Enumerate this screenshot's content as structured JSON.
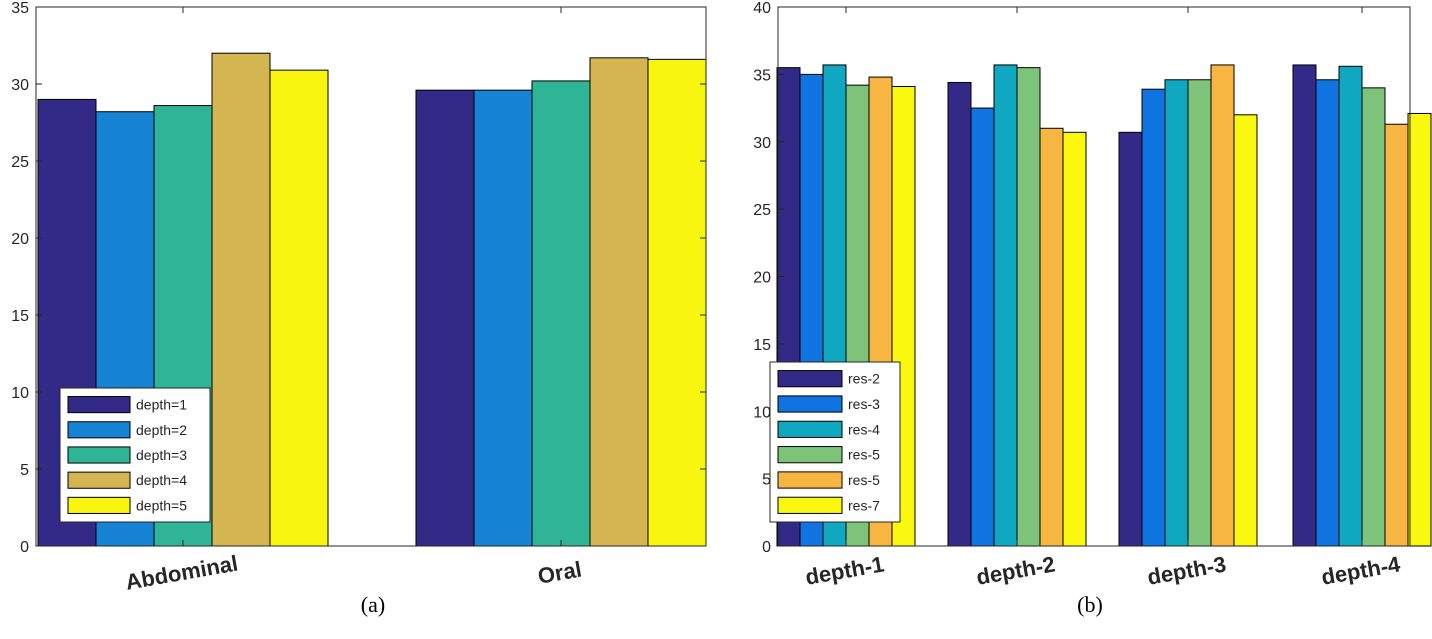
{
  "chart_data": [
    {
      "type": "bar",
      "caption": "(a)",
      "categories": [
        "Abdominal",
        "Oral"
      ],
      "series": [
        {
          "name": "depth=1",
          "color": "#332a87",
          "values": [
            29.0,
            29.6
          ]
        },
        {
          "name": "depth=2",
          "color": "#1683d4",
          "values": [
            28.2,
            29.6
          ]
        },
        {
          "name": "depth=3",
          "color": "#30b496",
          "values": [
            28.6,
            30.2
          ]
        },
        {
          "name": "depth=4",
          "color": "#d4b552",
          "values": [
            32.0,
            31.7
          ]
        },
        {
          "name": "depth=5",
          "color": "#f8f50f",
          "values": [
            30.9,
            31.6
          ]
        }
      ],
      "ylim": [
        0,
        35
      ],
      "yticks": [
        0,
        5,
        10,
        15,
        20,
        25,
        30,
        35
      ],
      "legend_position": "bottom-left",
      "xlabel": "",
      "ylabel": "",
      "title": ""
    },
    {
      "type": "bar",
      "caption": "(b)",
      "categories": [
        "depth-1",
        "depth-2",
        "depth-3",
        "depth-4"
      ],
      "series": [
        {
          "name": "res-2",
          "color": "#332a87",
          "values": [
            35.5,
            34.4,
            30.7,
            35.7
          ]
        },
        {
          "name": "res-3",
          "color": "#0f73e0",
          "values": [
            35.0,
            32.5,
            33.9,
            34.6
          ]
        },
        {
          "name": "res-4",
          "color": "#10a8c0",
          "values": [
            35.7,
            35.7,
            34.6,
            35.6
          ]
        },
        {
          "name": "res-5",
          "color": "#7dc47a",
          "values": [
            34.2,
            35.5,
            34.6,
            34.0
          ]
        },
        {
          "name": "res-5",
          "color": "#f7b641",
          "values": [
            34.8,
            31.0,
            35.7,
            31.3
          ]
        },
        {
          "name": "res-7",
          "color": "#f9f80e",
          "values": [
            34.1,
            30.7,
            32.0,
            32.1
          ]
        }
      ],
      "ylim": [
        0,
        40
      ],
      "yticks": [
        0,
        5,
        10,
        15,
        20,
        25,
        30,
        35,
        40
      ],
      "legend_position": "bottom-left",
      "xlabel": "",
      "ylabel": "",
      "title": ""
    }
  ]
}
